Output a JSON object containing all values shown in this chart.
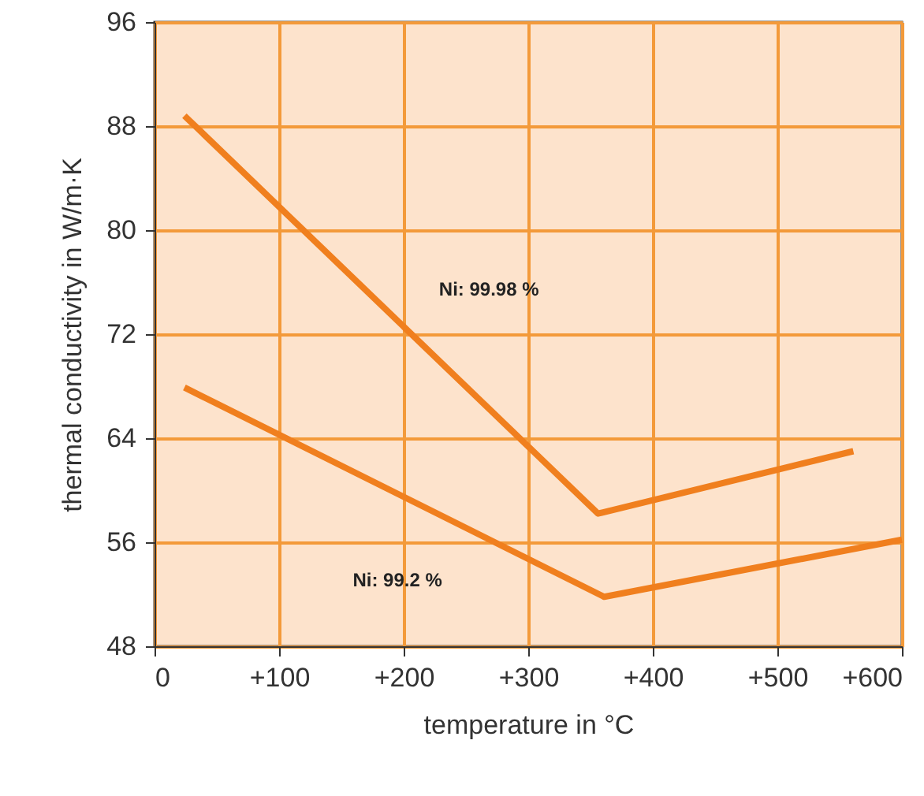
{
  "chart_data": {
    "type": "line",
    "xlabel": "temperature in °C",
    "ylabel": "thermal conductivity in W/m·K",
    "series": [
      {
        "name": "Ni: 99.98 %",
        "color": "#f07f1e",
        "x": [
          24,
          356,
          561
        ],
        "values": [
          88.8,
          58.2,
          63.0
        ]
      },
      {
        "name": "Ni: 99.2 %",
        "color": "#f07f1e",
        "x": [
          24,
          361,
          600
        ],
        "values": [
          67.9,
          51.8,
          56.2
        ]
      }
    ],
    "xlim": [
      0,
      600
    ],
    "xticks": [
      0,
      {
        "value": 100,
        "label": "+100"
      },
      {
        "value": 200,
        "label": "+200"
      },
      {
        "value": 300,
        "label": "+300"
      },
      {
        "value": 400,
        "label": "+400"
      },
      {
        "value": 500,
        "label": "+500"
      },
      {
        "value": 600,
        "label": "+600"
      }
    ],
    "ylim": [
      48,
      96
    ],
    "yticks": [
      48,
      56,
      64,
      72,
      80,
      88,
      96
    ],
    "grid": true,
    "marker": "none",
    "line_style": "solid"
  }
}
